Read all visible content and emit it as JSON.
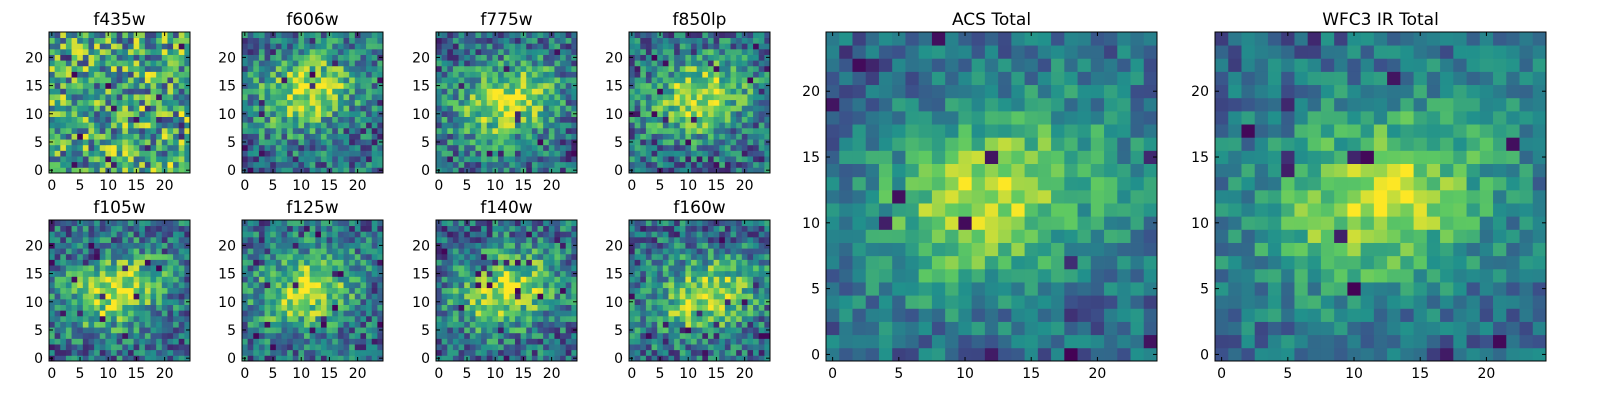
{
  "chart_data": [
    {
      "type": "heatmap",
      "title": "f435w",
      "xticks": [
        "0",
        "5",
        "10",
        "15",
        "20"
      ],
      "yticks": [
        "0",
        "5",
        "10",
        "15",
        "20"
      ],
      "xlim": [
        0,
        25
      ],
      "ylim": [
        0,
        25
      ],
      "colormap": "viridis",
      "peak": null
    },
    {
      "type": "heatmap",
      "title": "f606w",
      "xticks": [
        "0",
        "5",
        "10",
        "15",
        "20"
      ],
      "yticks": [
        "0",
        "5",
        "10",
        "15",
        "20"
      ],
      "xlim": [
        0,
        25
      ],
      "ylim": [
        0,
        25
      ],
      "colormap": "viridis",
      "peak": [
        11,
        14
      ]
    },
    {
      "type": "heatmap",
      "title": "f775w",
      "xticks": [
        "0",
        "5",
        "10",
        "15",
        "20"
      ],
      "yticks": [
        "0",
        "5",
        "10",
        "15",
        "20"
      ],
      "xlim": [
        0,
        25
      ],
      "ylim": [
        0,
        25
      ],
      "colormap": "viridis",
      "peak": [
        12,
        12
      ]
    },
    {
      "type": "heatmap",
      "title": "f850lp",
      "xticks": [
        "0",
        "5",
        "10",
        "15",
        "20"
      ],
      "yticks": [
        "0",
        "5",
        "10",
        "15",
        "20"
      ],
      "xlim": [
        0,
        25
      ],
      "ylim": [
        0,
        25
      ],
      "colormap": "viridis",
      "peak": [
        12,
        13
      ]
    },
    {
      "type": "heatmap",
      "title": "f105w",
      "xticks": [
        "0",
        "5",
        "10",
        "15",
        "20"
      ],
      "yticks": [
        "0",
        "5",
        "10",
        "15",
        "20"
      ],
      "xlim": [
        0,
        25
      ],
      "ylim": [
        0,
        25
      ],
      "colormap": "viridis",
      "peak": [
        11,
        12
      ]
    },
    {
      "type": "heatmap",
      "title": "f125w",
      "xticks": [
        "0",
        "5",
        "10",
        "15",
        "20"
      ],
      "yticks": [
        "0",
        "5",
        "10",
        "15",
        "20"
      ],
      "xlim": [
        0,
        25
      ],
      "ylim": [
        0,
        25
      ],
      "colormap": "viridis",
      "peak": [
        11,
        12
      ]
    },
    {
      "type": "heatmap",
      "title": "f140w",
      "xticks": [
        "0",
        "5",
        "10",
        "15",
        "20"
      ],
      "yticks": [
        "0",
        "5",
        "10",
        "15",
        "20"
      ],
      "xlim": [
        0,
        25
      ],
      "ylim": [
        0,
        25
      ],
      "colormap": "viridis",
      "peak": [
        12,
        12
      ]
    },
    {
      "type": "heatmap",
      "title": "f160w",
      "xticks": [
        "0",
        "5",
        "10",
        "15",
        "20"
      ],
      "yticks": [
        "0",
        "5",
        "10",
        "15",
        "20"
      ],
      "xlim": [
        0,
        25
      ],
      "ylim": [
        0,
        25
      ],
      "colormap": "viridis",
      "peak": [
        13,
        11
      ]
    },
    {
      "type": "heatmap",
      "title": "ACS Total",
      "xticks": [
        "0",
        "5",
        "10",
        "15",
        "20"
      ],
      "yticks": [
        "0",
        "5",
        "10",
        "15",
        "20"
      ],
      "xlim": [
        0,
        25
      ],
      "ylim": [
        0,
        25
      ],
      "colormap": "viridis",
      "peak": [
        12,
        12
      ]
    },
    {
      "type": "heatmap",
      "title": "WFC3 IR Total",
      "xticks": [
        "0",
        "5",
        "10",
        "15",
        "20"
      ],
      "yticks": [
        "0",
        "5",
        "10",
        "15",
        "20"
      ],
      "xlim": [
        0,
        25
      ],
      "ylim": [
        0,
        25
      ],
      "colormap": "viridis",
      "peak": [
        12,
        12
      ]
    }
  ]
}
